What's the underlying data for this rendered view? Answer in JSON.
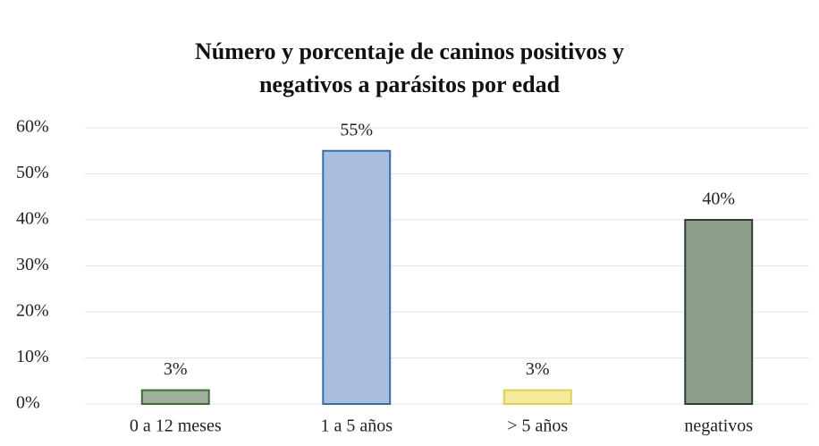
{
  "chart_data": {
    "type": "bar",
    "title": [
      "Número y porcentaje de caninos positivos y",
      "negativos a parásitos por edad"
    ],
    "categories": [
      "0 a 12 meses",
      "1 a 5 años",
      "> 5 años",
      "negativos"
    ],
    "values": [
      3,
      55,
      3,
      40
    ],
    "value_labels": [
      "3%",
      "55%",
      "3%",
      "40%"
    ],
    "colors": [
      "#9fb09b",
      "#a8bedb",
      "#f2eb9c",
      "#8e9c8c"
    ],
    "edge_colors": [
      "#3f6b3c",
      "#3d6aa8",
      "#e0cf52",
      "#2f3f2f"
    ],
    "ylim": [
      0,
      60
    ],
    "yticks": [
      {
        "value": 0,
        "label": "0%"
      },
      {
        "value": 10,
        "label": "10%"
      },
      {
        "value": 20,
        "label": "20%"
      },
      {
        "value": 30,
        "label": "30%"
      },
      {
        "value": 40,
        "label": "40%"
      },
      {
        "value": 50,
        "label": "50%"
      },
      {
        "value": 60,
        "label": "60%"
      }
    ],
    "grid": true
  }
}
